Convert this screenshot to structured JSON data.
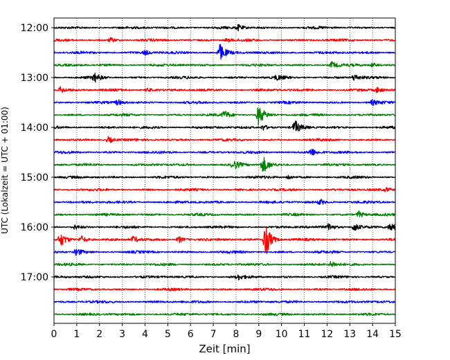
{
  "chart_data": {
    "type": "line",
    "title": "",
    "xlabel": "Zeit  [min]",
    "ylabel": "UTC (Lokalzeit = UTC + 01:00)",
    "xlim": [
      0,
      15
    ],
    "x_ticks": [
      0,
      1,
      2,
      3,
      4,
      5,
      6,
      7,
      8,
      9,
      10,
      11,
      12,
      13,
      14,
      15
    ],
    "y_ticks": [
      "12:00",
      "13:00",
      "14:00",
      "15:00",
      "16:00",
      "17:00"
    ],
    "grid": "vertical dotted at x ticks",
    "legend": "none",
    "line_colors": [
      "#000000",
      "#ff0000",
      "#0000ff",
      "#008000"
    ],
    "series": [
      {
        "start": "12:00",
        "events": [
          {
            "x": 8.1,
            "amp": 0.25
          }
        ]
      },
      {
        "start": "12:15",
        "events": [
          {
            "x": 2.5,
            "amp": 0.2
          },
          {
            "x": 7.6,
            "amp": 0.15
          }
        ]
      },
      {
        "start": "12:30",
        "events": [
          {
            "x": 7.3,
            "amp": 0.8
          },
          {
            "x": 4.0,
            "amp": 0.2
          }
        ]
      },
      {
        "start": "12:45",
        "events": [
          {
            "x": 12.2,
            "amp": 0.3
          },
          {
            "x": 14.0,
            "amp": 0.2
          }
        ]
      },
      {
        "start": "13:00",
        "events": [
          {
            "x": 1.8,
            "amp": 0.35
          },
          {
            "x": 9.8,
            "amp": 0.2
          },
          {
            "x": 13.2,
            "amp": 0.3
          }
        ]
      },
      {
        "start": "13:15",
        "events": [
          {
            "x": 0.3,
            "amp": 0.3
          },
          {
            "x": 4.1,
            "amp": 0.2
          },
          {
            "x": 14.2,
            "amp": 0.25
          }
        ]
      },
      {
        "start": "13:30",
        "events": [
          {
            "x": 2.8,
            "amp": 0.25
          },
          {
            "x": 14.0,
            "amp": 0.2
          }
        ]
      },
      {
        "start": "13:45",
        "events": [
          {
            "x": 9.0,
            "amp": 1.0
          },
          {
            "x": 7.5,
            "amp": 0.35
          }
        ]
      },
      {
        "start": "14:00",
        "events": [
          {
            "x": 10.6,
            "amp": 0.55
          },
          {
            "x": 9.2,
            "amp": 0.25
          }
        ]
      },
      {
        "start": "14:15",
        "events": [
          {
            "x": 2.4,
            "amp": 0.3
          }
        ]
      },
      {
        "start": "14:30",
        "events": [
          {
            "x": 11.3,
            "amp": 0.35
          }
        ]
      },
      {
        "start": "14:45",
        "events": [
          {
            "x": 9.2,
            "amp": 0.75
          },
          {
            "x": 7.9,
            "amp": 0.4
          }
        ]
      },
      {
        "start": "15:00",
        "events": [
          {
            "x": 10.3,
            "amp": 0.2
          }
        ]
      },
      {
        "start": "15:15",
        "events": [
          {
            "x": 14.6,
            "amp": 0.15
          }
        ]
      },
      {
        "start": "15:30",
        "events": [
          {
            "x": 11.7,
            "amp": 0.25
          }
        ]
      },
      {
        "start": "15:45",
        "events": [
          {
            "x": 13.4,
            "amp": 0.3
          }
        ]
      },
      {
        "start": "16:00",
        "events": [
          {
            "x": 12.1,
            "amp": 0.35
          },
          {
            "x": 13.2,
            "amp": 0.4
          },
          {
            "x": 14.8,
            "amp": 0.45
          },
          {
            "x": 0.9,
            "amp": 0.2
          }
        ]
      },
      {
        "start": "16:15",
        "events": [
          {
            "x": 9.3,
            "amp": 1.6
          },
          {
            "x": 0.3,
            "amp": 0.55
          },
          {
            "x": 1.2,
            "amp": 0.35
          },
          {
            "x": 3.5,
            "amp": 0.3
          },
          {
            "x": 5.5,
            "amp": 0.3
          }
        ]
      },
      {
        "start": "16:30",
        "events": [
          {
            "x": 1.0,
            "amp": 0.35
          }
        ]
      },
      {
        "start": "16:45",
        "events": [
          {
            "x": 12.2,
            "amp": 0.3
          }
        ]
      },
      {
        "start": "17:00",
        "events": [
          {
            "x": 8.1,
            "amp": 0.2
          }
        ]
      },
      {
        "start": "17:15",
        "events": []
      },
      {
        "start": "17:30",
        "events": []
      },
      {
        "start": "17:45",
        "events": []
      }
    ]
  }
}
